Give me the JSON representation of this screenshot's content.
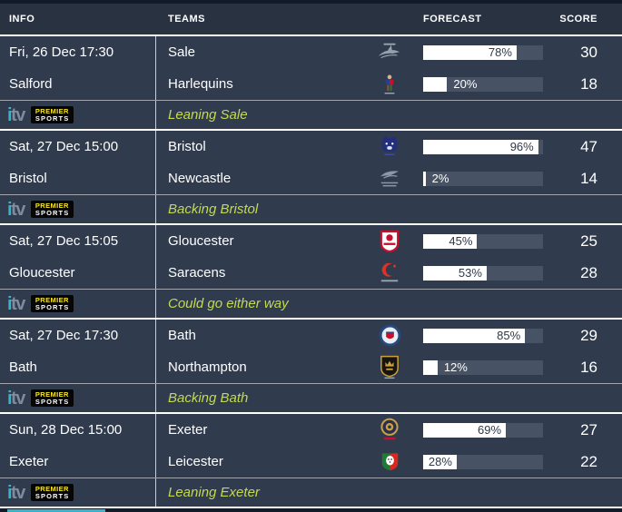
{
  "header": {
    "columns": [
      "INFO",
      "TEAMS",
      "FORECAST",
      "SCORE"
    ]
  },
  "broadcaster": {
    "itv_label": "itv",
    "premier_line1": "PREMIER",
    "premier_line2": "SPORTS"
  },
  "colors": {
    "row_background": "#303b4d",
    "header_background": "#293241",
    "bar_track": "#475365",
    "bar_fill": "#ffffff",
    "verdict_green": "#c3da52",
    "itv_accent": "#38b4c8",
    "premier_yellow": "#f8e71c"
  },
  "groups": [
    {
      "kickoff": "Fri, 26 Dec 17:30",
      "venue": "Salford",
      "verdict": "Leaning Sale",
      "home": {
        "name": "Sale",
        "logo": "sale-sharks-logo",
        "forecast_pct": 78,
        "score": 30
      },
      "away": {
        "name": "Harlequins",
        "logo": "harlequins-logo",
        "forecast_pct": 20,
        "score": 18
      }
    },
    {
      "kickoff": "Sat, 27 Dec 15:00",
      "venue": "Bristol",
      "verdict": "Backing Bristol",
      "home": {
        "name": "Bristol",
        "logo": "bristol-bears-logo",
        "forecast_pct": 96,
        "score": 47
      },
      "away": {
        "name": "Newcastle",
        "logo": "newcastle-falcons-logo",
        "forecast_pct": 2,
        "score": 14
      }
    },
    {
      "kickoff": "Sat, 27 Dec 15:05",
      "venue": "Gloucester",
      "verdict": "Could go either way",
      "home": {
        "name": "Gloucester",
        "logo": "gloucester-logo",
        "forecast_pct": 45,
        "score": 25
      },
      "away": {
        "name": "Saracens",
        "logo": "saracens-logo",
        "forecast_pct": 53,
        "score": 28
      }
    },
    {
      "kickoff": "Sat, 27 Dec 17:30",
      "venue": "Bath",
      "verdict": "Backing Bath",
      "home": {
        "name": "Bath",
        "logo": "bath-logo",
        "forecast_pct": 85,
        "score": 29
      },
      "away": {
        "name": "Northampton",
        "logo": "northampton-saints-logo",
        "forecast_pct": 12,
        "score": 16
      }
    },
    {
      "kickoff": "Sun, 28 Dec 15:00",
      "venue": "Exeter",
      "verdict": "Leaning Exeter",
      "home": {
        "name": "Exeter",
        "logo": "exeter-chiefs-logo",
        "forecast_pct": 69,
        "score": 27
      },
      "away": {
        "name": "Leicester",
        "logo": "leicester-tigers-logo",
        "forecast_pct": 28,
        "score": 22
      }
    }
  ]
}
